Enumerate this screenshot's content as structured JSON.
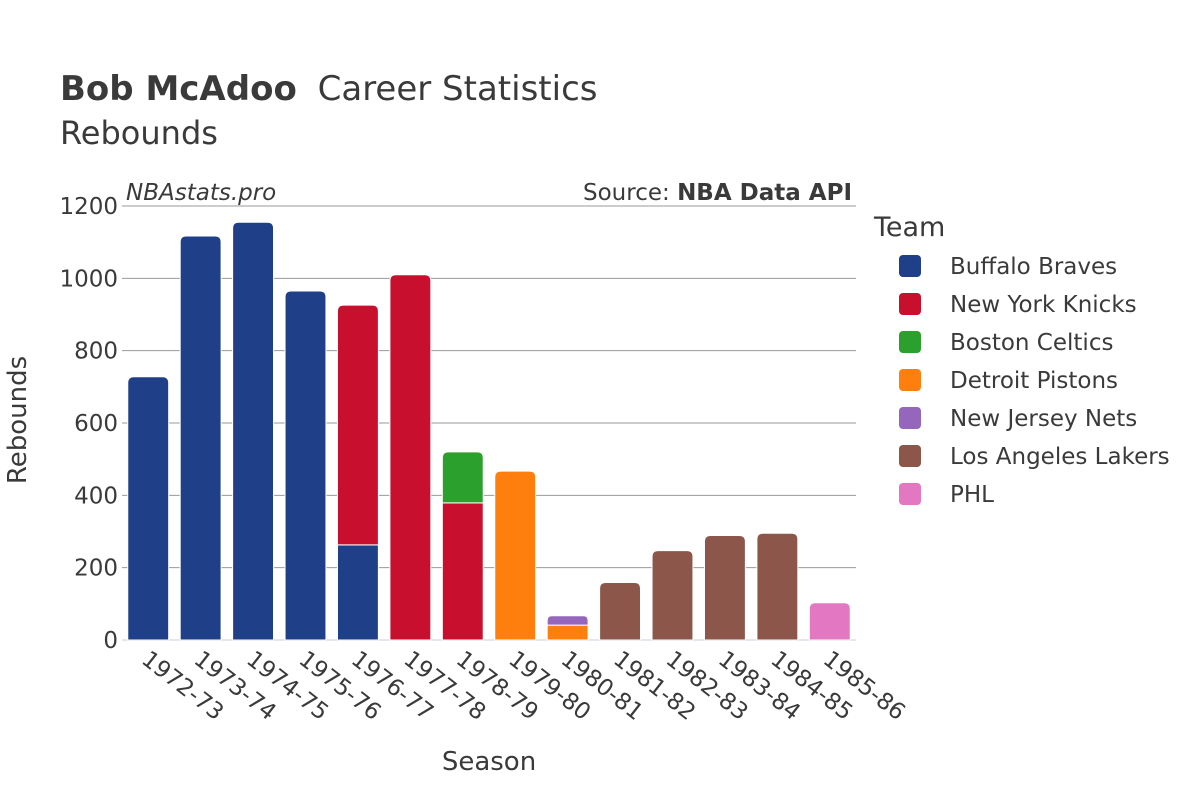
{
  "header": {
    "player": "Bob McAdoo",
    "title_rest": "Career Statistics",
    "subtitle": "Rebounds"
  },
  "watermark": "NBAstats.pro",
  "source": {
    "label": "Source: ",
    "name": "NBA Data API"
  },
  "chart_data": {
    "type": "bar",
    "stacked": true,
    "xlabel": "Season",
    "ylabel": "Rebounds",
    "ylim": [
      0,
      1200
    ],
    "yticks": [
      0,
      200,
      400,
      600,
      800,
      1000,
      1200
    ],
    "grid": true,
    "legend_title": "Team",
    "legend_position": "right",
    "categories": [
      "1972-73",
      "1973-74",
      "1974-75",
      "1975-76",
      "1976-77",
      "1977-78",
      "1978-79",
      "1979-80",
      "1980-81",
      "1981-82",
      "1982-83",
      "1983-84",
      "1984-85",
      "1985-86"
    ],
    "series": [
      {
        "name": "Buffalo Braves",
        "color": "#1f4088",
        "values": [
          728,
          1117,
          1155,
          965,
          263,
          0,
          0,
          0,
          0,
          0,
          0,
          0,
          0,
          0
        ]
      },
      {
        "name": "New York Knicks",
        "color": "#c8102e",
        "values": [
          0,
          0,
          0,
          0,
          663,
          1010,
          379,
          0,
          0,
          0,
          0,
          0,
          0,
          0
        ]
      },
      {
        "name": "Boston Celtics",
        "color": "#2ca02c",
        "values": [
          0,
          0,
          0,
          0,
          0,
          0,
          141,
          0,
          0,
          0,
          0,
          0,
          0,
          0
        ]
      },
      {
        "name": "Detroit Pistons",
        "color": "#ff7f0e",
        "values": [
          0,
          0,
          0,
          0,
          0,
          0,
          0,
          467,
          41,
          0,
          0,
          0,
          0,
          0
        ]
      },
      {
        "name": "New Jersey Nets",
        "color": "#9467bd",
        "values": [
          0,
          0,
          0,
          0,
          0,
          0,
          0,
          0,
          26,
          0,
          0,
          0,
          0,
          0
        ]
      },
      {
        "name": "Los Angeles Lakers",
        "color": "#8c564b",
        "values": [
          0,
          0,
          0,
          0,
          0,
          0,
          0,
          0,
          0,
          159,
          247,
          289,
          295,
          0
        ]
      },
      {
        "name": "PHL",
        "color": "#e377c2",
        "values": [
          0,
          0,
          0,
          0,
          0,
          0,
          0,
          0,
          0,
          0,
          0,
          0,
          0,
          103
        ]
      }
    ]
  }
}
